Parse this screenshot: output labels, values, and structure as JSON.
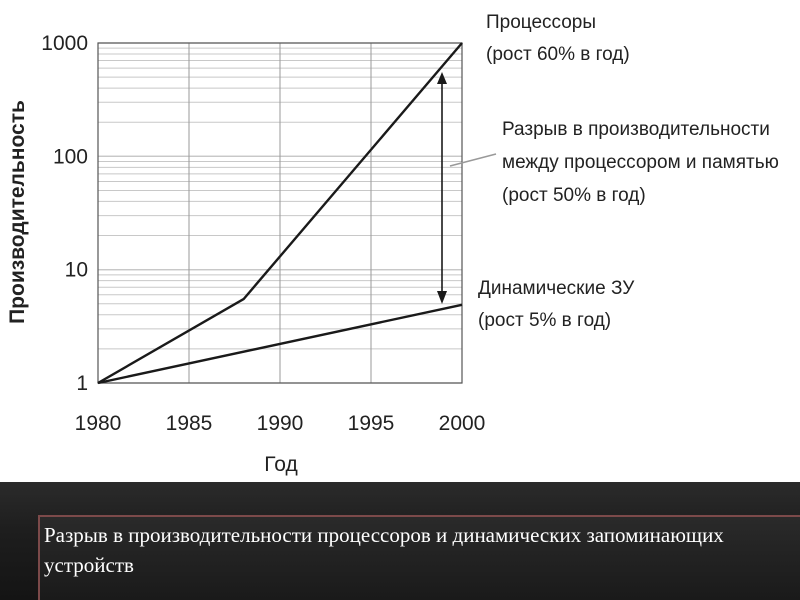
{
  "chart_data": {
    "type": "line",
    "ylabel": "Производительность",
    "xlabel": "Год",
    "xlim": [
      1980,
      2000
    ],
    "ylim": [
      1,
      1000
    ],
    "yscale": "log",
    "grid": true,
    "x_ticks": [
      "1980",
      "1985",
      "1990",
      "1995",
      "2000"
    ],
    "y_ticks": [
      "1",
      "10",
      "100",
      "1000"
    ],
    "series": [
      {
        "name": "Процессоры",
        "x": [
          1980,
          1988,
          2000
        ],
        "y": [
          1,
          5.5,
          1000
        ]
      },
      {
        "name": "Динамические ЗУ",
        "x": [
          1980,
          2000
        ],
        "y": [
          1,
          4.9
        ]
      }
    ],
    "annotations": [
      {
        "lines": [
          "Процессоры",
          "(рост 60% в год)"
        ]
      },
      {
        "lines": [
          "Разрыв в производительности",
          "между процессором и памятью",
          "(рост 50% в год)"
        ]
      },
      {
        "lines": [
          "Динамические ЗУ",
          "(рост 5% в год)"
        ]
      }
    ]
  },
  "caption": {
    "text": "Разрыв в производительности процессоров и динамических запоминающих устройств"
  },
  "colors": {
    "line": "#1a1a1a",
    "grid": "#c8c8c8",
    "band": "#1e1e1e",
    "caption_border": "#7c4a4a",
    "caption_text": "#ffffff"
  }
}
